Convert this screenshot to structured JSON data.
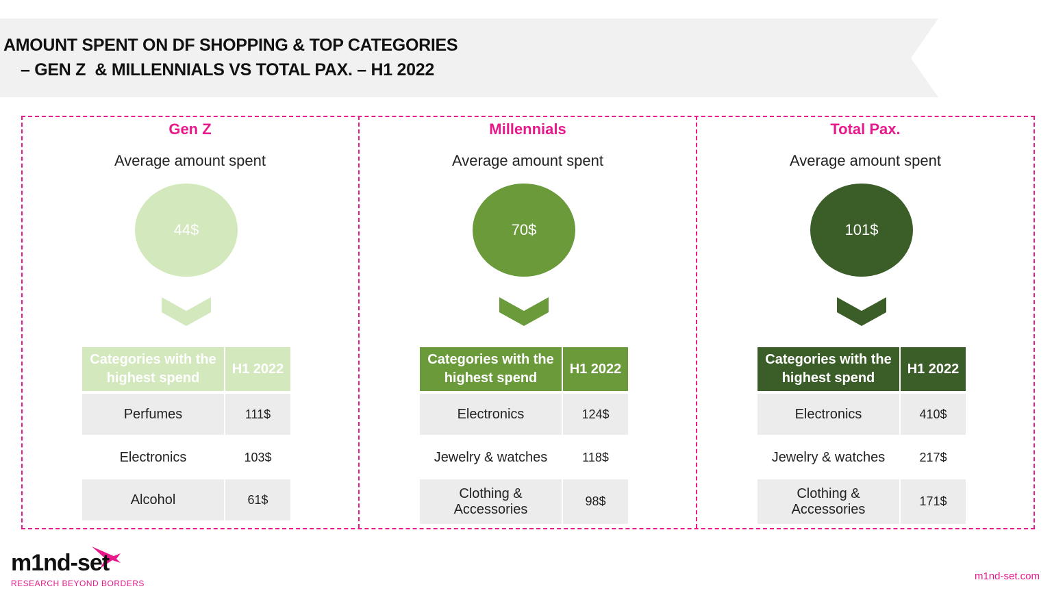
{
  "header": {
    "title_line1": "AMOUNT SPENT ON DF SHOPPING & TOP CATEGORIES",
    "title_line2": "– GEN Z  & MILLENNIALS VS TOTAL PAX. – H1 2022"
  },
  "panels": [
    {
      "title": "Gen Z",
      "subtitle": "Average amount spent",
      "amount": "44$",
      "table": {
        "header": [
          "Categories with the highest spend",
          "H1 2022"
        ],
        "rows": [
          [
            "Perfumes",
            "111$"
          ],
          [
            "Electronics",
            "103$"
          ],
          [
            "Alcohol",
            "61$"
          ]
        ]
      }
    },
    {
      "title": "Millennials",
      "subtitle": "Average amount spent",
      "amount": "70$",
      "table": {
        "header": [
          "Categories with the highest spend",
          "H1 2022"
        ],
        "rows": [
          [
            "Electronics",
            "124$"
          ],
          [
            "Jewelry & watches",
            "118$"
          ],
          [
            "Clothing & Accessories",
            "98$"
          ]
        ]
      }
    },
    {
      "title": "Total Pax.",
      "subtitle": "Average amount spent",
      "amount": "101$",
      "table": {
        "header": [
          "Categories with the highest spend",
          "H1 2022"
        ],
        "rows": [
          [
            "Electronics",
            "410$"
          ],
          [
            "Jewelry & watches",
            "217$"
          ],
          [
            "Clothing & Accessories",
            "171$"
          ]
        ]
      }
    }
  ],
  "footer": {
    "logo": "m1nd-set",
    "tagline": "RESEARCH BEYOND BORDERS",
    "url": "m1nd-set.com"
  }
}
